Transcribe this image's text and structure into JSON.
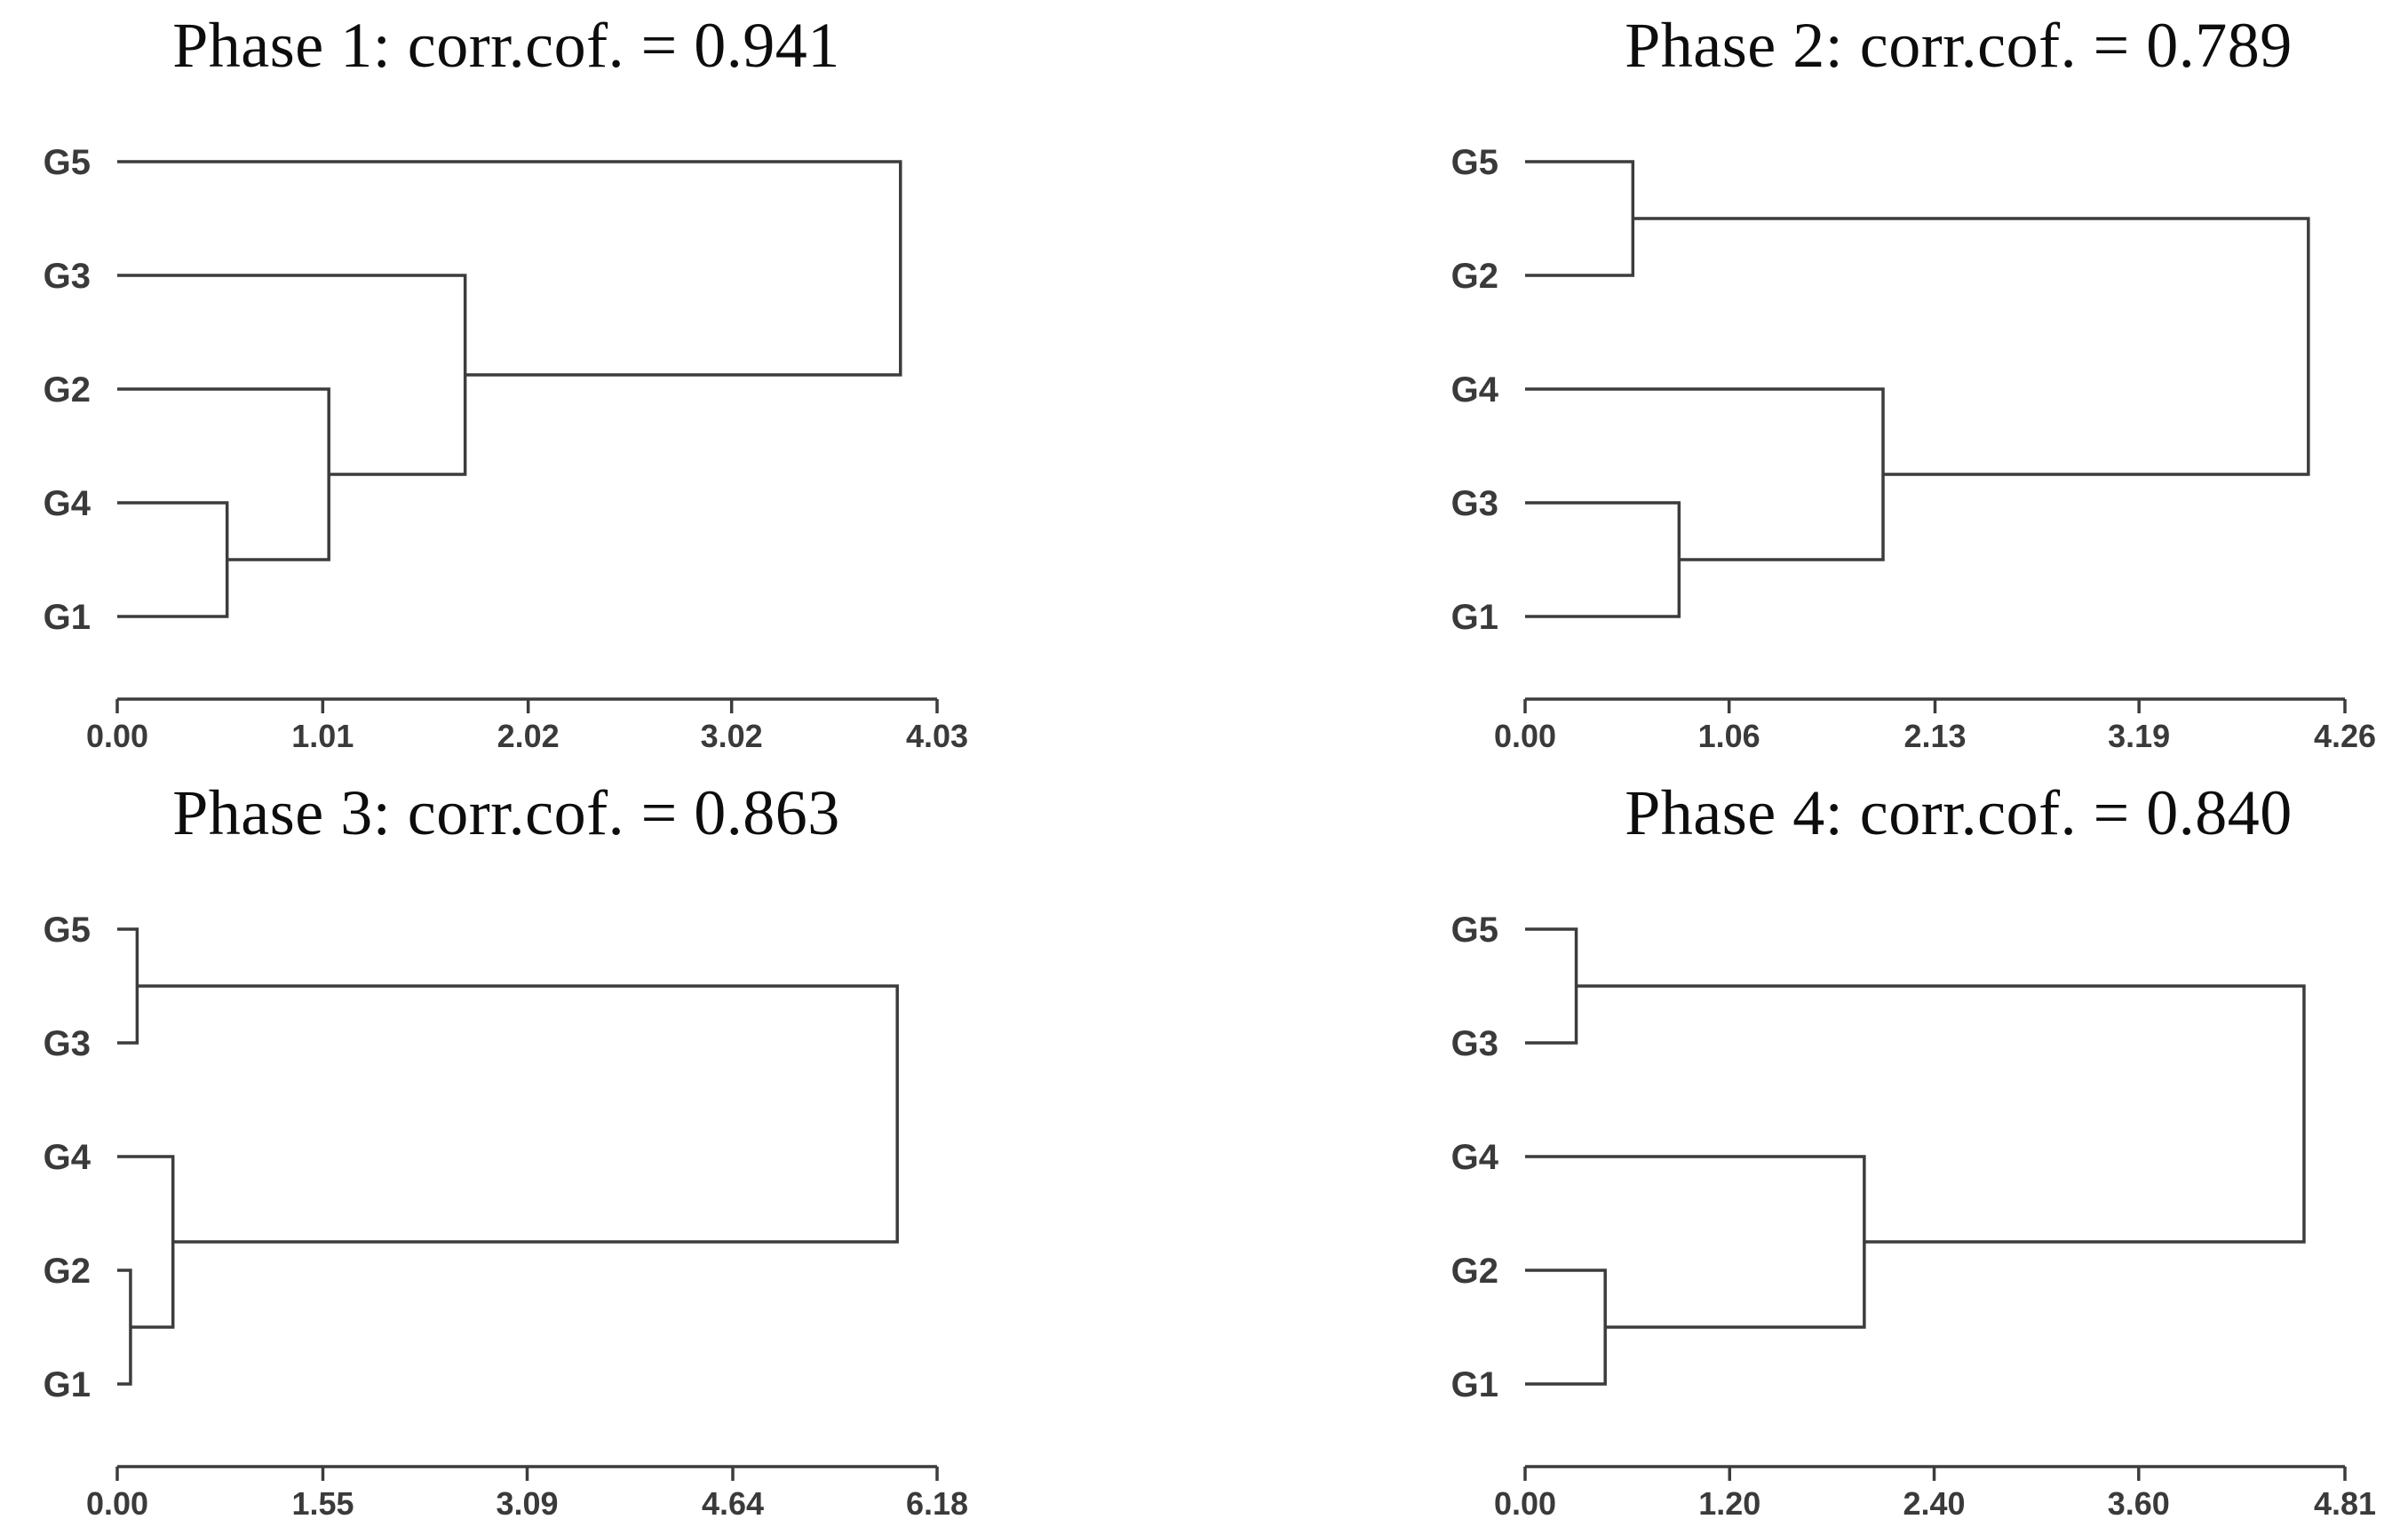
{
  "colors": {
    "background": "#ffffff",
    "line": "#3c3c3c",
    "label_text": "#3a3a3a",
    "title_text": "#0d0d0d"
  },
  "chart_data": [
    {
      "type": "dendrogram",
      "title": "Phase 1: corr.cof. = 0.941",
      "correlation_coefficient": 0.941,
      "orientation": "left-to-right",
      "leaves_top_to_bottom": [
        "G5",
        "G3",
        "G2",
        "G4",
        "G1"
      ],
      "tree": {
        "h": 3.85,
        "c": [
          "G5",
          {
            "h": 1.71,
            "c": [
              "G3",
              {
                "h": 1.04,
                "c": [
                  "G2",
                  {
                    "h": 0.54,
                    "c": [
                      "G4",
                      "G1"
                    ]
                  }
                ]
              }
            ]
          }
        ]
      },
      "x_ticks": [
        "0.00",
        "1.01",
        "2.02",
        "3.02",
        "4.03"
      ],
      "xlim": [
        0,
        4.03
      ],
      "grid": false
    },
    {
      "type": "dendrogram",
      "title": "Phase 2: corr.cof. = 0.789",
      "correlation_coefficient": 0.789,
      "orientation": "left-to-right",
      "leaves_top_to_bottom": [
        "G5",
        "G2",
        "G4",
        "G3",
        "G1"
      ],
      "tree": {
        "h": 4.07,
        "c": [
          {
            "h": 0.56,
            "c": [
              "G5",
              "G2"
            ]
          },
          {
            "h": 1.86,
            "c": [
              "G4",
              {
                "h": 0.8,
                "c": [
                  "G3",
                  "G1"
                ]
              }
            ]
          }
        ]
      },
      "x_ticks": [
        "0.00",
        "1.06",
        "2.13",
        "3.19",
        "4.26"
      ],
      "xlim": [
        0,
        4.26
      ],
      "grid": false
    },
    {
      "type": "dendrogram",
      "title": "Phase 3: corr.cof. = 0.863",
      "correlation_coefficient": 0.863,
      "orientation": "left-to-right",
      "leaves_top_to_bottom": [
        "G5",
        "G3",
        "G4",
        "G2",
        "G1"
      ],
      "tree": {
        "h": 5.88,
        "c": [
          {
            "h": 0.15,
            "c": [
              "G5",
              "G3"
            ]
          },
          {
            "h": 0.42,
            "c": [
              "G4",
              {
                "h": 0.1,
                "c": [
                  "G2",
                  "G1"
                ]
              }
            ]
          }
        ]
      },
      "x_ticks": [
        "0.00",
        "1.55",
        "3.09",
        "4.64",
        "6.18"
      ],
      "xlim": [
        0,
        6.18
      ],
      "grid": false
    },
    {
      "type": "dendrogram",
      "title": "Phase 4: corr.cof. = 0.840",
      "correlation_coefficient": 0.84,
      "orientation": "left-to-right",
      "leaves_top_to_bottom": [
        "G5",
        "G3",
        "G4",
        "G2",
        "G1"
      ],
      "tree": {
        "h": 4.57,
        "c": [
          {
            "h": 0.3,
            "c": [
              "G5",
              "G3"
            ]
          },
          {
            "h": 1.99,
            "c": [
              "G4",
              {
                "h": 0.47,
                "c": [
                  "G2",
                  "G1"
                ]
              }
            ]
          }
        ]
      },
      "x_ticks": [
        "0.00",
        "1.20",
        "2.40",
        "3.60",
        "4.81"
      ],
      "xlim": [
        0,
        4.81
      ],
      "grid": false
    }
  ]
}
